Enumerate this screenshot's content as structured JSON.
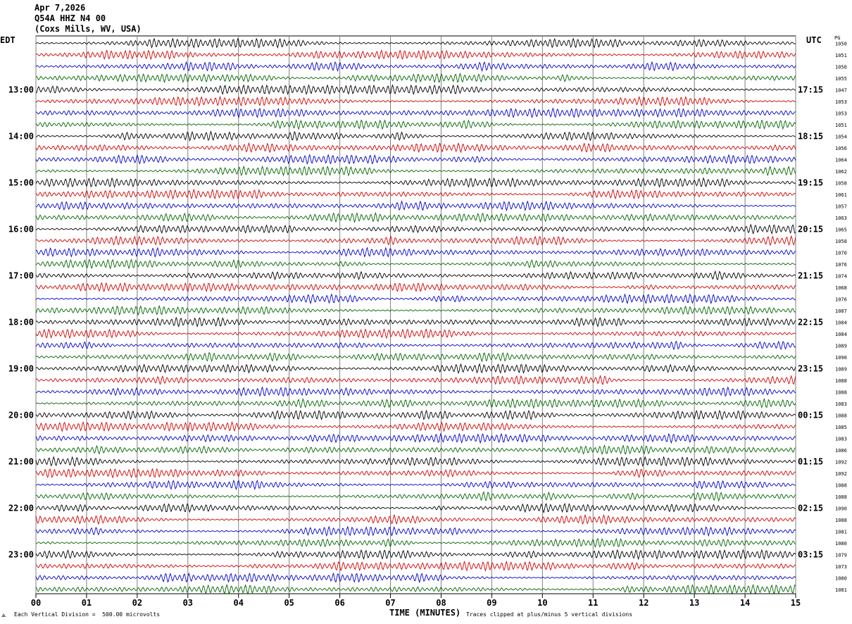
{
  "header": {
    "date": "Apr 7,2026",
    "station": "Q54A HHZ N4 00",
    "location": "(Coxs Mills, WV, USA)"
  },
  "left_tz": "EDT",
  "right_tz": "UTC",
  "right_col_header": "PG",
  "x_axis_title": "TIME (MINUTES)",
  "footer_left_marker": "⟁",
  "footer_scale": "Each Vertical Division =  500.00 microvolts",
  "footer_clip": "Traces clipped at plus/minus 5 vertical divisions",
  "colors": {
    "trace_cycle": [
      "#000000",
      "#d00000",
      "#0000c8",
      "#006400"
    ],
    "grid": "#808080"
  },
  "chart_data": {
    "type": "seismogram",
    "x_ticks": [
      "00",
      "01",
      "02",
      "03",
      "04",
      "05",
      "06",
      "07",
      "08",
      "09",
      "10",
      "11",
      "12",
      "13",
      "14",
      "15"
    ],
    "xlim": [
      0,
      15
    ],
    "rows_per_hour": 4,
    "row_count": 48,
    "left_hour_labels": [
      {
        "row": 4,
        "text": "13:00"
      },
      {
        "row": 8,
        "text": "14:00"
      },
      {
        "row": 12,
        "text": "15:00"
      },
      {
        "row": 16,
        "text": "16:00"
      },
      {
        "row": 20,
        "text": "17:00"
      },
      {
        "row": 24,
        "text": "18:00"
      },
      {
        "row": 28,
        "text": "19:00"
      },
      {
        "row": 32,
        "text": "20:00"
      },
      {
        "row": 36,
        "text": "21:00"
      },
      {
        "row": 40,
        "text": "22:00"
      },
      {
        "row": 44,
        "text": "23:00"
      }
    ],
    "right_hour_labels": [
      {
        "row": 4,
        "text": "17:15"
      },
      {
        "row": 8,
        "text": "18:15"
      },
      {
        "row": 12,
        "text": "19:15"
      },
      {
        "row": 16,
        "text": "20:15"
      },
      {
        "row": 20,
        "text": "21:15"
      },
      {
        "row": 24,
        "text": "22:15"
      },
      {
        "row": 28,
        "text": "23:15"
      },
      {
        "row": 32,
        "text": "00:15"
      },
      {
        "row": 36,
        "text": "01:15"
      },
      {
        "row": 40,
        "text": "02:15"
      },
      {
        "row": 44,
        "text": "03:15"
      }
    ],
    "row_values": [
      "1050",
      "1051",
      "1050",
      "1055",
      "1047",
      "1053",
      "1053",
      "1051",
      "1054",
      "1056",
      "1064",
      "1062",
      "1058",
      "1061",
      "1057",
      "1063",
      "1065",
      "1058",
      "1070",
      "1076",
      "1074",
      "1068",
      "1076",
      "1087",
      "1084",
      "1084",
      "1089",
      "1090",
      "1089",
      "1088",
      "1088",
      "1083",
      "1088",
      "1085",
      "1083",
      "1086",
      "1092",
      "1092",
      "1088",
      "1088",
      "1090",
      "1088",
      "1081",
      "1080",
      "1079",
      "1073",
      "1080",
      "1081"
    ]
  }
}
